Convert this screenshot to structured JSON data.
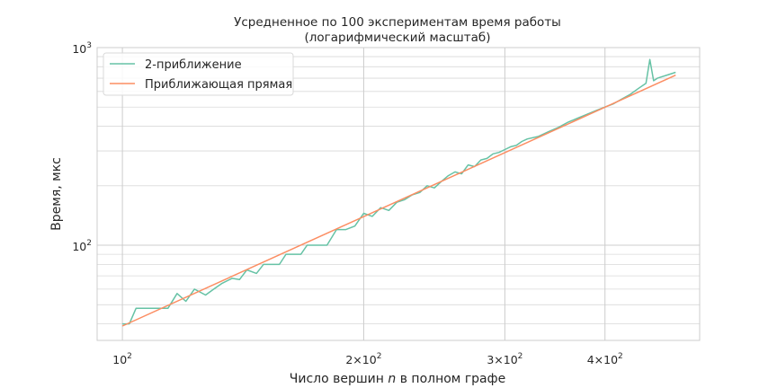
{
  "chart_data": {
    "type": "line",
    "title_line1": "Усредненное по 100 экспериментам время работы",
    "title_line2": "(логарифмический масштаб)",
    "xlabel_prefix": "Число вершин ",
    "xlabel_var": "n",
    "xlabel_suffix": " в полном графе",
    "ylabel": "Время, мкс",
    "x_scale": "log",
    "y_scale": "log",
    "xlim": [
      93,
      525
    ],
    "ylim": [
      33,
      1000
    ],
    "grid": true,
    "legend_placement": "top-left",
    "x_ticks": [
      {
        "value": 100,
        "base": "10",
        "exp": "2"
      },
      {
        "value": 200,
        "base": "2×10",
        "exp": "2"
      },
      {
        "value": 300,
        "base": "3×10",
        "exp": "2"
      },
      {
        "value": 400,
        "base": "4×10",
        "exp": "2"
      }
    ],
    "y_ticks": [
      {
        "value": 100,
        "base": "10",
        "exp": "2"
      },
      {
        "value": 1000,
        "base": "10",
        "exp": "3"
      }
    ],
    "series": [
      {
        "name": "2-приближение",
        "color": "#66c2a5",
        "x": [
          100,
          102,
          104,
          106,
          110,
          114,
          117,
          120,
          123,
          127,
          130,
          133,
          137,
          140,
          143,
          147,
          150,
          153,
          157,
          160,
          163,
          167,
          170,
          175,
          180,
          185,
          190,
          195,
          200,
          205,
          210,
          215,
          220,
          225,
          230,
          235,
          240,
          245,
          250,
          255,
          260,
          265,
          270,
          275,
          280,
          285,
          290,
          295,
          300,
          305,
          310,
          315,
          320,
          330,
          340,
          350,
          360,
          370,
          380,
          390,
          400,
          410,
          420,
          430,
          440,
          450,
          455,
          460,
          465,
          470,
          480,
          490
        ],
        "y": [
          40,
          40,
          48,
          48,
          48,
          48,
          57,
          52,
          60,
          56,
          60,
          64,
          68,
          67,
          75,
          72,
          80,
          80,
          80,
          90,
          90,
          90,
          100,
          100,
          100,
          120,
          120,
          125,
          145,
          140,
          155,
          150,
          165,
          170,
          180,
          185,
          200,
          195,
          210,
          225,
          235,
          230,
          255,
          250,
          270,
          275,
          290,
          295,
          305,
          315,
          320,
          335,
          345,
          355,
          375,
          395,
          420,
          440,
          460,
          480,
          500,
          520,
          550,
          580,
          620,
          660,
          870,
          680,
          700,
          710,
          730,
          750
        ]
      },
      {
        "name": "Приближающая прямая",
        "color": "#fc8d62",
        "x": [
          100,
          490
        ],
        "y": [
          39,
          725
        ]
      }
    ]
  }
}
